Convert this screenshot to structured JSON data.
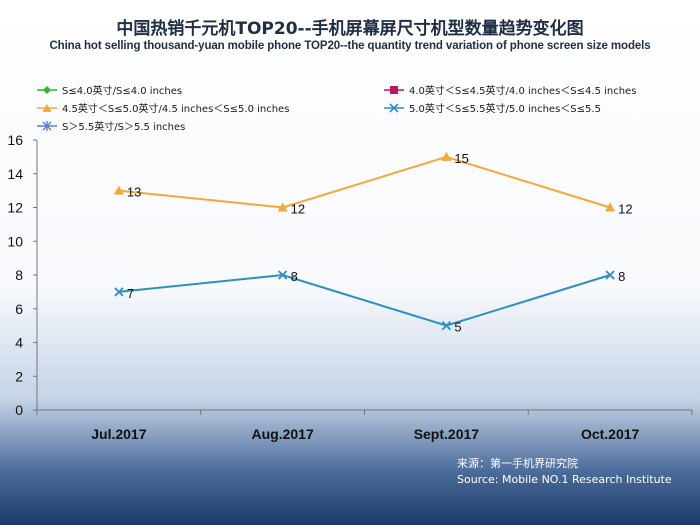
{
  "title": "中国热销千元机TOP20--手机屏幕屏尺寸机型数量趋势变化图",
  "subtitle": "China hot selling thousand-yuan mobile phone TOP20--the quantity trend variation of phone screen size models",
  "source_cn": "来源：第一手机界研究院",
  "source_en": "Source: Mobile NO.1 Research Institute",
  "chart_data": {
    "type": "line",
    "categories": [
      "Jul.2017",
      "Aug.2017",
      "Sept.2017",
      "Oct.2017"
    ],
    "ylim": [
      0,
      16
    ],
    "yticks": [
      0,
      2,
      4,
      6,
      8,
      10,
      12,
      14,
      16
    ],
    "grid": false,
    "legend_position": "top",
    "series": [
      {
        "name": "S≤4.0英寸/S≤4.0 inches",
        "color": "#2eb82e",
        "marker": "diamond",
        "values": [
          null,
          null,
          null,
          null
        ]
      },
      {
        "name": "4.0英寸＜S≤4.5英寸/4.0 inches＜S≤4.5 inches",
        "color": "#c0145c",
        "marker": "square",
        "values": [
          null,
          null,
          null,
          null
        ]
      },
      {
        "name": "4.5英寸＜S≤5.0英寸/4.5 inches＜S≤5.0 inches",
        "color": "#f5a83a",
        "marker": "triangle",
        "values": [
          13,
          12,
          15,
          12
        ]
      },
      {
        "name": "5.0英寸＜S≤5.5英寸/5.0 inches＜S≤5.5",
        "color": "#2e8fc2",
        "marker": "x",
        "values": [
          7,
          8,
          5,
          8
        ]
      },
      {
        "name": "S＞5.5英寸/S＞5.5 inches",
        "color": "#5a7fd6",
        "marker": "asterisk",
        "values": [
          null,
          null,
          null,
          null
        ]
      }
    ]
  }
}
